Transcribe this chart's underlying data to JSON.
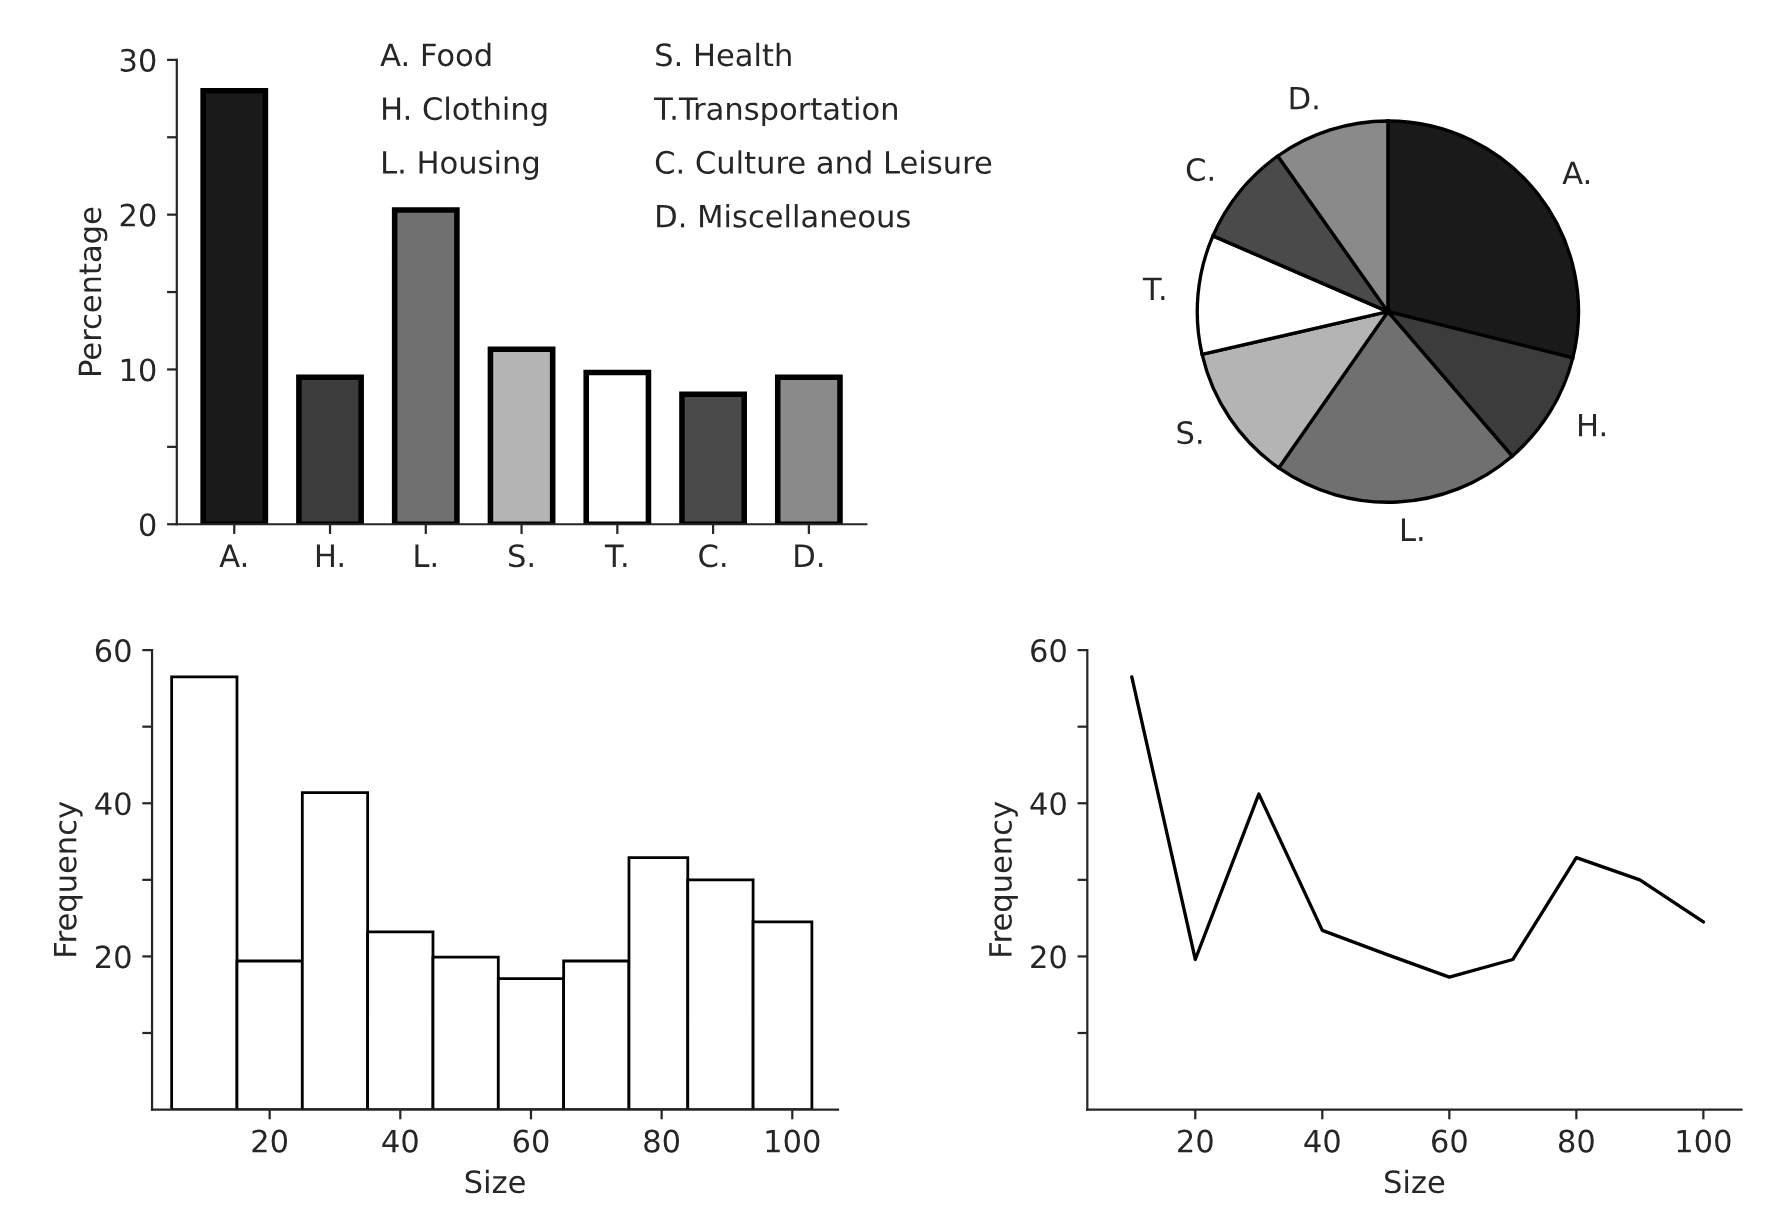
{
  "chart_data": [
    {
      "type": "bar",
      "ylabel": "Percentage",
      "categories": [
        "A.",
        "H.",
        "L.",
        "S.",
        "T.",
        "C.",
        "D."
      ],
      "values": [
        28,
        9.5,
        20.3,
        11.3,
        9.8,
        8.4,
        9.5
      ],
      "colors": [
        "#1a1a1a",
        "#3c3c3c",
        "#707070",
        "#b4b4b4",
        "#ffffff",
        "#4a4a4a",
        "#8a8a8a"
      ],
      "ylim": [
        0,
        30
      ],
      "yticks": [
        0,
        {
          "value": 5,
          "label": null
        },
        10,
        {
          "value": 15,
          "label": null
        },
        20,
        {
          "value": 25,
          "label": null
        },
        30
      ],
      "grid": false,
      "annotations": [
        "A. Food",
        "H. Clothing",
        "L. Housing",
        "S. Health",
        "T.Transportation",
        "C. Culture and Leisure",
        "D. Miscellaneous"
      ]
    },
    {
      "type": "pie",
      "categories": [
        "A.",
        "H.",
        "L.",
        "S.",
        "T.",
        "C.",
        "D."
      ],
      "values": [
        28.9,
        9.8,
        21.0,
        11.7,
        10.1,
        8.7,
        9.8
      ],
      "colors": [
        "#1a1a1a",
        "#3c3c3c",
        "#707070",
        "#b4b4b4",
        "#ffffff",
        "#4a4a4a",
        "#8a8a8a"
      ]
    },
    {
      "type": "histogram",
      "xlabel": "Size",
      "ylabel": "Frequency",
      "bins": [
        5,
        15,
        25,
        35,
        45,
        55,
        65,
        75,
        84,
        94,
        103
      ],
      "values": [
        56.5,
        19.4,
        41.4,
        23.2,
        19.9,
        17.1,
        19.4,
        32.9,
        30.0,
        24.5
      ],
      "color": "#ffffff",
      "xlim": [
        2,
        107
      ],
      "xticks": [
        20,
        40,
        60,
        80,
        100
      ],
      "ylim": [
        0,
        60
      ],
      "yticks": [
        {
          "value": 10,
          "label": null
        },
        20,
        {
          "value": 30,
          "label": null
        },
        40,
        {
          "value": 50,
          "label": null
        },
        60
      ],
      "grid": false
    },
    {
      "type": "line",
      "xlabel": "Size",
      "ylabel": "Frequency",
      "x": [
        10,
        20,
        30,
        40,
        50,
        60,
        70,
        80,
        90,
        100
      ],
      "series": [
        {
          "color": "#000000",
          "values": [
            56.5,
            19.6,
            41.2,
            23.4,
            20.3,
            17.3,
            19.6,
            32.9,
            30.0,
            24.5
          ]
        }
      ],
      "xlim": [
        3,
        106
      ],
      "xticks": [
        20,
        40,
        60,
        80,
        100
      ],
      "ylim": [
        0,
        60
      ],
      "yticks": [
        {
          "value": 10,
          "label": null
        },
        20,
        {
          "value": 30,
          "label": null
        },
        40,
        {
          "value": 50,
          "label": null
        },
        60
      ],
      "grid": false,
      "marker": "none",
      "line_style": "solid"
    }
  ]
}
